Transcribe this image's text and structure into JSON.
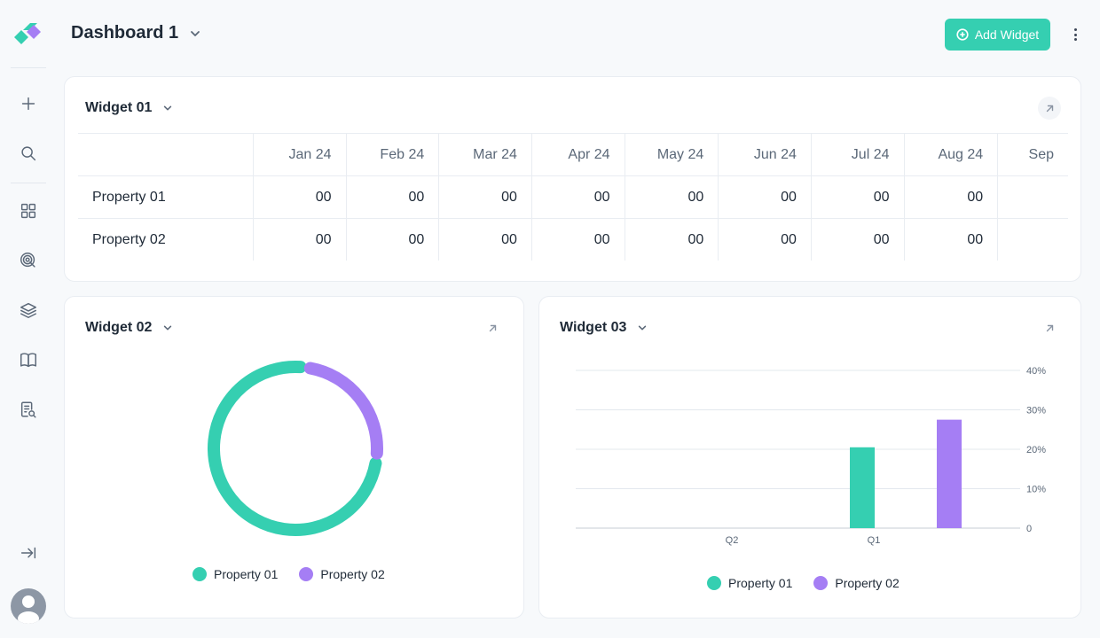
{
  "header": {
    "title": "Dashboard 1",
    "add_widget_label": "Add Widget"
  },
  "colors": {
    "accent": "#35cfb1",
    "property_01": "#35cfb1",
    "property_02": "#a57ef4"
  },
  "sidebar": {
    "icons": [
      "plus-icon",
      "search-icon",
      "grid-icon",
      "target-icon",
      "layers-icon",
      "book-icon",
      "document-search-icon",
      "collapse-sidebar-icon"
    ]
  },
  "widget01": {
    "title": "Widget 01",
    "columns": [
      "Jan 24",
      "Feb 24",
      "Mar 24",
      "Apr 24",
      "May 24",
      "Jun 24",
      "Jul 24",
      "Aug 24",
      "Sep"
    ],
    "rows": [
      {
        "label": "Property 01",
        "values": [
          "00",
          "00",
          "00",
          "00",
          "00",
          "00",
          "00",
          "00",
          ""
        ]
      },
      {
        "label": "Property 02",
        "values": [
          "00",
          "00",
          "00",
          "00",
          "00",
          "00",
          "00",
          "00",
          ""
        ]
      }
    ]
  },
  "widget02": {
    "title": "Widget 02",
    "legend": [
      "Property 01",
      "Property 02"
    ]
  },
  "widget03": {
    "title": "Widget 03",
    "legend": [
      "Property 01",
      "Property 02"
    ]
  },
  "chart_data": [
    {
      "type": "pie",
      "title": "",
      "labels": [
        "Property 01",
        "Property 02"
      ],
      "values": [
        75,
        25
      ]
    },
    {
      "type": "bar",
      "title": "",
      "categories": [
        "Q2",
        "Q1"
      ],
      "series": [
        {
          "name": "Property 01",
          "values": [
            0,
            20.5
          ]
        },
        {
          "name": "Property 02",
          "values": [
            0,
            27.5
          ]
        }
      ],
      "yticks": [
        "0",
        "10%",
        "20%",
        "30%",
        "40%"
      ],
      "ylim": [
        0,
        40
      ],
      "grid": true,
      "y_axis_position": "right",
      "legend": "bottom"
    }
  ]
}
